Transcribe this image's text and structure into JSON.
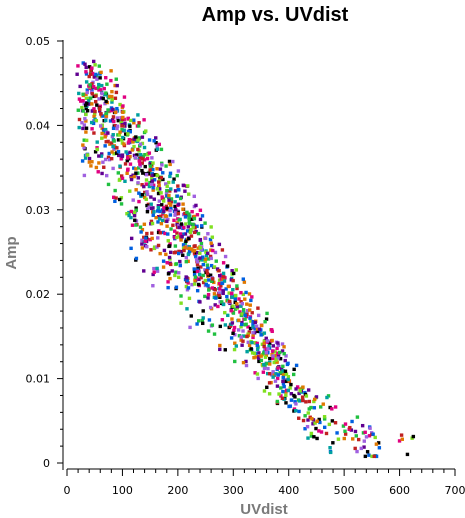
{
  "chart_data": {
    "type": "scatter",
    "title": "Amp vs. UVdist",
    "xlabel": "UVdist",
    "ylabel": "Amp",
    "xlim": [
      0,
      700
    ],
    "ylim": [
      0,
      0.05
    ],
    "x_ticks": [
      0,
      100,
      200,
      300,
      400,
      500,
      600,
      700
    ],
    "x_tick_labels": [
      "0",
      "100",
      "200",
      "300",
      "400",
      "500",
      "600",
      "700"
    ],
    "y_ticks": [
      0,
      0.01,
      0.02,
      0.03,
      0.04,
      0.05
    ],
    "y_tick_labels": [
      "0",
      "0.01",
      "0.02",
      "0.03",
      "0.04",
      "0.05"
    ],
    "grid": false,
    "legend": "none",
    "marker_colors": [
      "#0060e0",
      "#e07800",
      "#20c040",
      "#e00080",
      "#000000",
      "#600090",
      "#a060e0",
      "#00a0a0",
      "#80e020",
      "#c02020"
    ],
    "series": [
      {
        "x": [
          25,
          30,
          35,
          40,
          45,
          50,
          55,
          60,
          65,
          70,
          75,
          80,
          85,
          90,
          95,
          100,
          105,
          110,
          115,
          120,
          125,
          130,
          135,
          140,
          145,
          150,
          155,
          160,
          165,
          170,
          175,
          180,
          185,
          190,
          195,
          200,
          205,
          210,
          215,
          220,
          225,
          230,
          235,
          240,
          245,
          250,
          255,
          260,
          265,
          270,
          275,
          280,
          285,
          290,
          295,
          300,
          305,
          310,
          315,
          320,
          325,
          330,
          335,
          340,
          345,
          350,
          355,
          360,
          365,
          370,
          375,
          380,
          385,
          390,
          395,
          400,
          405,
          410,
          415,
          420,
          425,
          430,
          435,
          440,
          445,
          450,
          460,
          470,
          475,
          500,
          510,
          520,
          530,
          545,
          550,
          555,
          560,
          600,
          620
        ],
        "y": [
          0.0415,
          0.0425,
          0.043,
          0.0435,
          0.044,
          0.0435,
          0.043,
          0.0425,
          0.042,
          0.0415,
          0.041,
          0.0405,
          0.04,
          0.0395,
          0.039,
          0.0385,
          0.038,
          0.0375,
          0.037,
          0.0365,
          0.036,
          0.0355,
          0.035,
          0.0345,
          0.034,
          0.0335,
          0.033,
          0.0325,
          0.032,
          0.0315,
          0.031,
          0.0305,
          0.03,
          0.0295,
          0.029,
          0.0285,
          0.028,
          0.0275,
          0.027,
          0.0265,
          0.026,
          0.0255,
          0.025,
          0.0245,
          0.024,
          0.0235,
          0.023,
          0.0225,
          0.022,
          0.0215,
          0.021,
          0.0205,
          0.02,
          0.0195,
          0.019,
          0.0185,
          0.018,
          0.0175,
          0.017,
          0.0165,
          0.016,
          0.0155,
          0.015,
          0.0145,
          0.014,
          0.0135,
          0.013,
          0.0125,
          0.012,
          0.0115,
          0.011,
          0.0105,
          0.01,
          0.0095,
          0.009,
          0.0085,
          0.008,
          0.0075,
          0.007,
          0.0065,
          0.006,
          0.0055,
          0.005,
          0.0045,
          0.0042,
          0.004,
          0.0038,
          0.0035,
          0.0032,
          0.0045,
          0.004,
          0.0035,
          0.003,
          0.0025,
          0.0022,
          0.002,
          0.0018,
          0.002,
          0.0025
        ]
      },
      {
        "x": [
          30,
          40,
          50,
          60,
          70,
          80,
          90,
          100,
          110,
          120,
          130,
          140,
          150,
          160,
          170,
          180,
          190,
          200,
          210,
          220,
          230,
          240,
          250,
          260,
          270,
          280,
          290,
          300,
          310,
          320,
          330,
          340,
          350,
          360,
          370,
          380,
          390,
          400,
          410,
          420,
          430,
          440,
          450,
          470,
          480,
          520,
          540,
          560
        ],
        "y": [
          0.037,
          0.038,
          0.0375,
          0.037,
          0.0365,
          0.036,
          0.034,
          0.033,
          0.032,
          0.031,
          0.03,
          0.029,
          0.028,
          0.027,
          0.027,
          0.026,
          0.025,
          0.025,
          0.024,
          0.023,
          0.022,
          0.022,
          0.021,
          0.02,
          0.019,
          0.019,
          0.018,
          0.017,
          0.017,
          0.016,
          0.015,
          0.014,
          0.014,
          0.013,
          0.012,
          0.012,
          0.011,
          0.01,
          0.009,
          0.009,
          0.008,
          0.007,
          0.007,
          0.006,
          0.005,
          0.003,
          0.002,
          0.0015
        ]
      },
      {
        "x": [
          20,
          35,
          45,
          55,
          65,
          75,
          85,
          95,
          105,
          115,
          125,
          135,
          145,
          155,
          165,
          175,
          185,
          195,
          205,
          215,
          225,
          235,
          245,
          255,
          265,
          275,
          285,
          295,
          305,
          315,
          325,
          335,
          345,
          355,
          365,
          375,
          385,
          395,
          405,
          415,
          425,
          435,
          445,
          455,
          465,
          485,
          505,
          535,
          555
        ],
        "y": [
          0.0445,
          0.0455,
          0.045,
          0.0445,
          0.044,
          0.0435,
          0.043,
          0.042,
          0.041,
          0.04,
          0.039,
          0.038,
          0.037,
          0.036,
          0.035,
          0.034,
          0.033,
          0.032,
          0.031,
          0.03,
          0.029,
          0.028,
          0.027,
          0.026,
          0.025,
          0.024,
          0.023,
          0.022,
          0.021,
          0.02,
          0.019,
          0.018,
          0.017,
          0.016,
          0.015,
          0.014,
          0.013,
          0.012,
          0.011,
          0.01,
          0.009,
          0.008,
          0.007,
          0.006,
          0.005,
          0.004,
          0.003,
          0.0025,
          0.002
        ]
      },
      {
        "x": [
          120,
          140,
          160,
          180,
          200,
          220,
          240,
          260,
          280,
          300,
          320,
          340,
          360,
          380,
          400,
          420
        ],
        "y": [
          0.027,
          0.025,
          0.024,
          0.023,
          0.021,
          0.019,
          0.018,
          0.017,
          0.015,
          0.014,
          0.013,
          0.012,
          0.01,
          0.009,
          0.008,
          0.006
        ]
      }
    ]
  }
}
